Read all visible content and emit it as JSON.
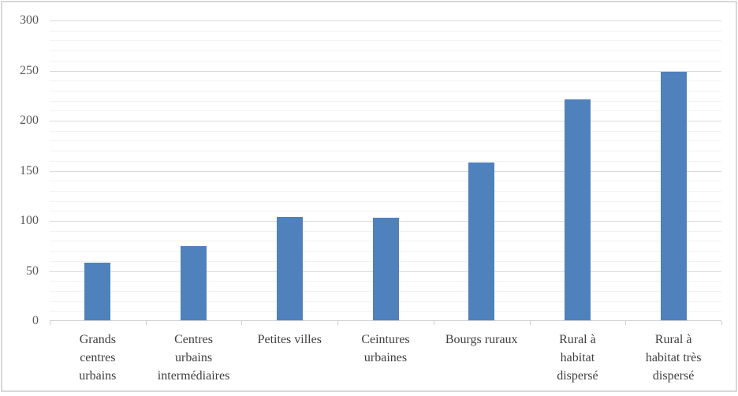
{
  "chart_data": {
    "type": "bar",
    "title": "",
    "xlabel": "",
    "ylabel": "",
    "categories": [
      "Grands centres urbains",
      "Centres urbains intermédiaires",
      "Petites villes",
      "Ceintures urbaines",
      "Bourgs ruraux",
      "Rural à habitat dispersé",
      "Rural à habitat très dispersé"
    ],
    "values": [
      58,
      75,
      104,
      103,
      158,
      221,
      249
    ],
    "ylim": [
      0,
      300
    ],
    "y_ticks": [
      0,
      50,
      100,
      150,
      200,
      250,
      300
    ],
    "y_major_step": 50,
    "y_minor_step": 10,
    "grid": "major and minor horizontal gridlines",
    "legend": false,
    "bar_color": "#4f81bd"
  },
  "x_axis": {
    "display_labels": [
      "Grands\ncentres\nurbains",
      "Centres\nurbains\nintermédiaires",
      "Petites villes",
      "Ceintures\nurbaines",
      "Bourgs ruraux",
      "Rural à\nhabitat\ndispersé",
      "Rural à\nhabitat très\ndispersé"
    ]
  },
  "colors": {
    "bar": "#4f81bd",
    "major_grid": "#d9d9d9",
    "minor_grid": "#f2f2f2",
    "axis_line": "#cfcfcf",
    "frame_border": "#d8d8d8",
    "y_label_text": "#595959",
    "x_label_text": "#3f3f3f",
    "background": "#ffffff"
  }
}
